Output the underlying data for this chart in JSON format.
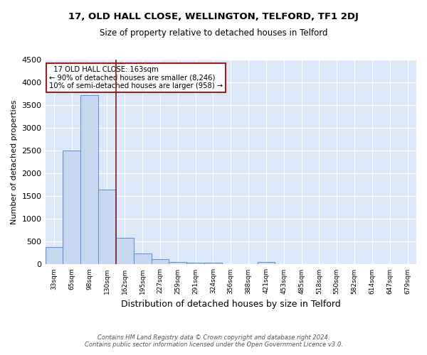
{
  "title1": "17, OLD HALL CLOSE, WELLINGTON, TELFORD, TF1 2DJ",
  "title2": "Size of property relative to detached houses in Telford",
  "xlabel": "Distribution of detached houses by size in Telford",
  "ylabel": "Number of detached properties",
  "footer": "Contains HM Land Registry data © Crown copyright and database right 2024.\nContains public sector information licensed under the Open Government Licence v3.0.",
  "bin_labels": [
    "33sqm",
    "65sqm",
    "98sqm",
    "130sqm",
    "162sqm",
    "195sqm",
    "227sqm",
    "259sqm",
    "291sqm",
    "324sqm",
    "356sqm",
    "388sqm",
    "421sqm",
    "453sqm",
    "485sqm",
    "518sqm",
    "550sqm",
    "582sqm",
    "614sqm",
    "647sqm",
    "679sqm"
  ],
  "bar_heights": [
    380,
    2500,
    3720,
    1640,
    580,
    240,
    110,
    60,
    40,
    35,
    0,
    0,
    60,
    0,
    0,
    0,
    0,
    0,
    0,
    0,
    0
  ],
  "bar_color": "#c5d8f0",
  "bar_edge_color": "#5b8fd4",
  "bg_color": "#dce8f8",
  "grid_color": "#ffffff",
  "vline_color": "#8b1a1a",
  "annotation_line1": "  17 OLD HALL CLOSE: 163sqm",
  "annotation_line2": "← 90% of detached houses are smaller (8,246)",
  "annotation_line3": "10% of semi-detached houses are larger (958) →",
  "annotation_box_color": "#ffffff",
  "annotation_box_edge": "#a02020",
  "ylim": [
    0,
    4500
  ],
  "yticks": [
    0,
    500,
    1000,
    1500,
    2000,
    2500,
    3000,
    3500,
    4000,
    4500
  ],
  "fig_bg": "#ffffff"
}
